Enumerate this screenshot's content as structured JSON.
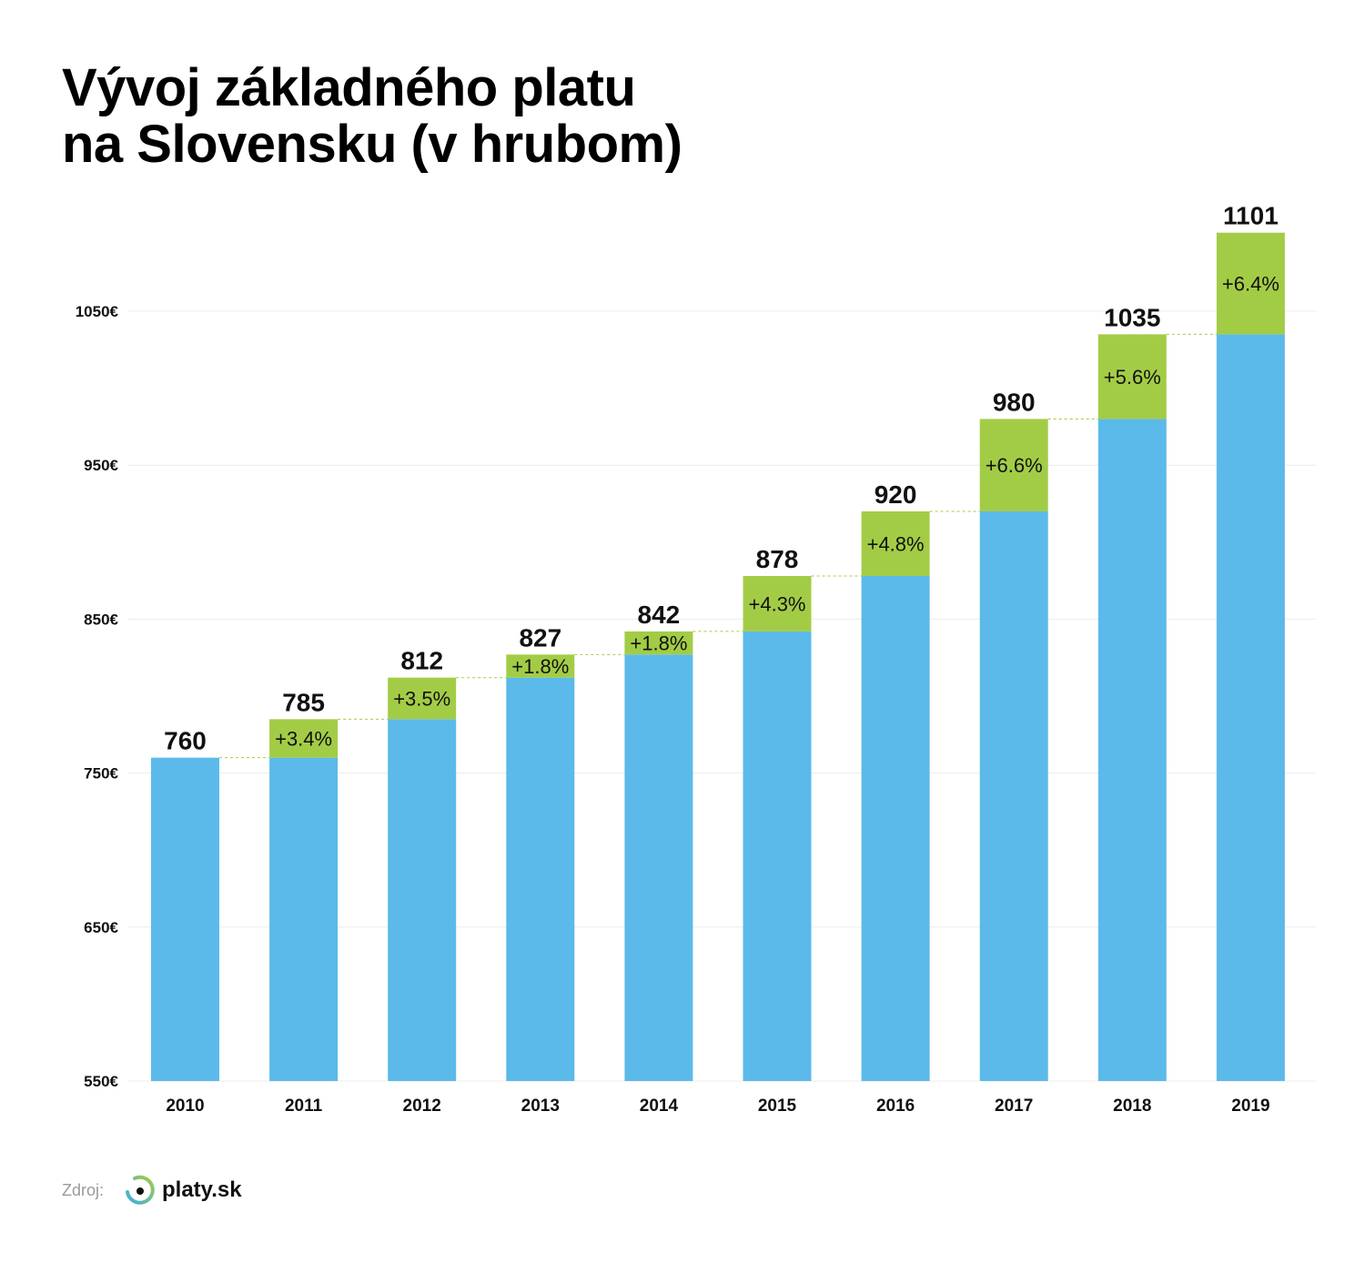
{
  "title_line1": "Vývoj základného platu",
  "title_line2": "na Slovensku (v hrubom)",
  "source_label": "Zdroj:",
  "logo_text": "platy.sk",
  "colors": {
    "base": "#5bbae9",
    "increase": "#a3cc46",
    "grid": "#ececec",
    "connector": "#a3cc46"
  },
  "chart_data": {
    "type": "bar",
    "subtype": "waterfall-stacked",
    "title": "Vývoj základného platu na Slovensku (v hrubom)",
    "categories": [
      "2010",
      "2011",
      "2012",
      "2013",
      "2014",
      "2015",
      "2016",
      "2017",
      "2018",
      "2019"
    ],
    "values": [
      760,
      785,
      812,
      827,
      842,
      878,
      920,
      980,
      1035,
      1101
    ],
    "value_labels": [
      "760",
      "785",
      "812",
      "827",
      "842",
      "878",
      "920",
      "980",
      "1035",
      "1101"
    ],
    "growth_labels": [
      "",
      "+3.4%",
      "+3.5%",
      "+1.8%",
      "+1.8%",
      "+4.3%",
      "+4.8%",
      "+6.6%",
      "+5.6%",
      "+6.4%"
    ],
    "yticks": [
      550,
      650,
      750,
      850,
      950,
      1050
    ],
    "ytick_labels": [
      "550€",
      "650€",
      "750€",
      "850€",
      "950€",
      "1050€"
    ],
    "ylim": [
      550,
      1100
    ],
    "xlabel": "",
    "ylabel": "",
    "grid": true
  }
}
